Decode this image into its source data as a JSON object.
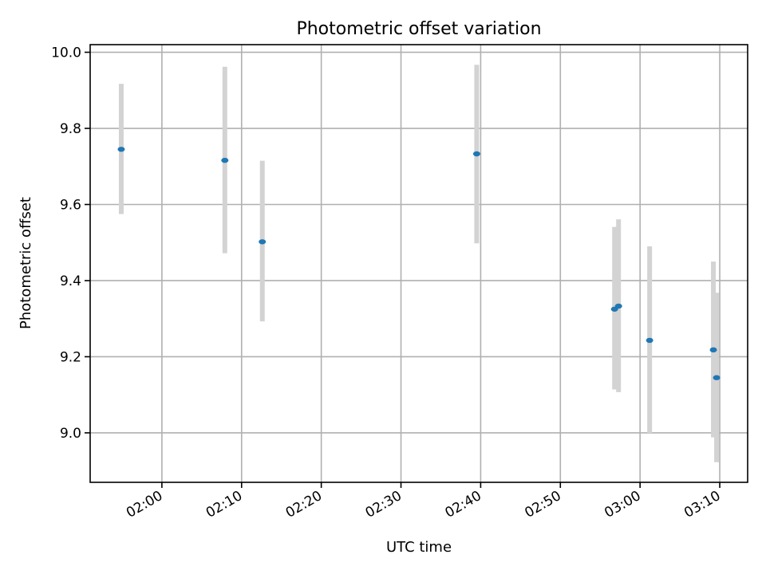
{
  "chart_data": {
    "type": "scatter",
    "title": "Photometric offset variation",
    "xlabel": "UTC time",
    "ylabel": "Photometric offset",
    "x_is_time": true,
    "xlim": [
      "01:51",
      "03:13.5"
    ],
    "ylim": [
      8.87,
      10.02
    ],
    "x_ticks": [
      "02:00",
      "02:10",
      "02:20",
      "02:30",
      "02:40",
      "02:50",
      "03:00",
      "03:10"
    ],
    "y_ticks": [
      "9.0",
      "9.2",
      "9.4",
      "9.6",
      "9.8",
      "10.0"
    ],
    "grid": true,
    "error_bars": true,
    "marker_color": "#1f77b4",
    "errorbar_color": "#d3d3d3",
    "points": [
      {
        "x": "01:54.9",
        "y": 9.745,
        "ylow": 9.575,
        "yhigh": 9.917
      },
      {
        "x": "02:07.9",
        "y": 9.716,
        "ylow": 9.472,
        "yhigh": 9.962
      },
      {
        "x": "02:12.6",
        "y": 9.502,
        "ylow": 9.293,
        "yhigh": 9.715
      },
      {
        "x": "02:39.5",
        "y": 9.733,
        "ylow": 9.498,
        "yhigh": 9.967
      },
      {
        "x": "02:56.8",
        "y": 9.325,
        "ylow": 9.114,
        "yhigh": 9.541
      },
      {
        "x": "02:57.3",
        "y": 9.333,
        "ylow": 9.107,
        "yhigh": 9.561
      },
      {
        "x": "03:01.2",
        "y": 9.243,
        "ylow": 9.0,
        "yhigh": 9.49
      },
      {
        "x": "03:09.2",
        "y": 9.218,
        "ylow": 8.988,
        "yhigh": 9.45
      },
      {
        "x": "03:09.6",
        "y": 9.145,
        "ylow": 8.923,
        "yhigh": 9.368
      }
    ]
  }
}
